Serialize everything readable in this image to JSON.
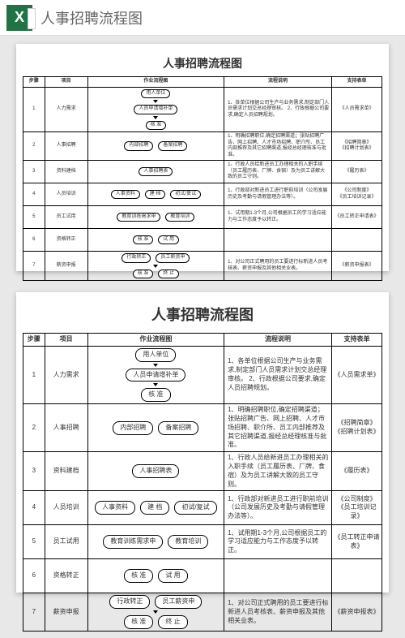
{
  "header": {
    "title": "人事招聘流程图"
  },
  "doc": {
    "title": "人事招聘流程图",
    "columns": {
      "step": "步骤",
      "item": "项目",
      "flow": "作业流程图",
      "desc": "流程说明",
      "form": "支持表单"
    },
    "rows": [
      {
        "step": "1",
        "item": "人力需求",
        "nodes": [
          "用人单位",
          "人员申请增补单",
          "核  准"
        ],
        "desc": "1、各单位根据公司生产与业务需求,制定部门人员需求计划交总经理审核。\n2、行政根据公司要求,确定人员招聘规划。",
        "form": "《人员需求单》"
      },
      {
        "step": "2",
        "item": "人事招聘",
        "nodes": [
          "内部招聘",
          "备案招聘"
        ],
        "desc": "1、明确招聘职位,确定招聘渠道；张贴招聘广告、网上招聘、人才市场招聘、职介所、员工内部推荐及其它招聘渠道,报经总经理核准与批准。",
        "form": "《招聘简章》\n《招聘计划表》"
      },
      {
        "step": "3",
        "item": "资料建档",
        "nodes": [
          "人事招聘表"
        ],
        "desc": "1、行政人员给新进员工办理相关的入职手续（员工履历表、厂牌、食宿）及为员工讲解大致的员工守则。",
        "form": "《履历表》"
      },
      {
        "step": "4",
        "item": "人员培训",
        "nodes": [
          "人事资料",
          "建  档",
          "初试/复试"
        ],
        "desc": "1、行政部对新进员工进行职前培训（公司发展历史及考勤与请假管理办法等）。",
        "form": "《公司制度》\n《员工培训记录》"
      },
      {
        "step": "5",
        "item": "员工试用",
        "nodes": [
          "教育训练需求申",
          "教育培训"
        ],
        "desc": "1、试用期1-3个月,公司根据员工的学习适应能力与工作态度予以转正。",
        "form": "《员工转正申请表》"
      },
      {
        "step": "6",
        "item": "资格转正",
        "nodes": [
          "核  准",
          "试  用"
        ],
        "desc": "",
        "form": ""
      },
      {
        "step": "7",
        "item": "薪资申报",
        "nodes": [
          "行政转正",
          "员工薪资申",
          "核  准",
          "终  止"
        ],
        "desc": "1、对公司正式聘用的员工要进行标新进人员考核表、薪资申报及其他相关业表。",
        "form": "《薪资申报表》"
      }
    ]
  }
}
